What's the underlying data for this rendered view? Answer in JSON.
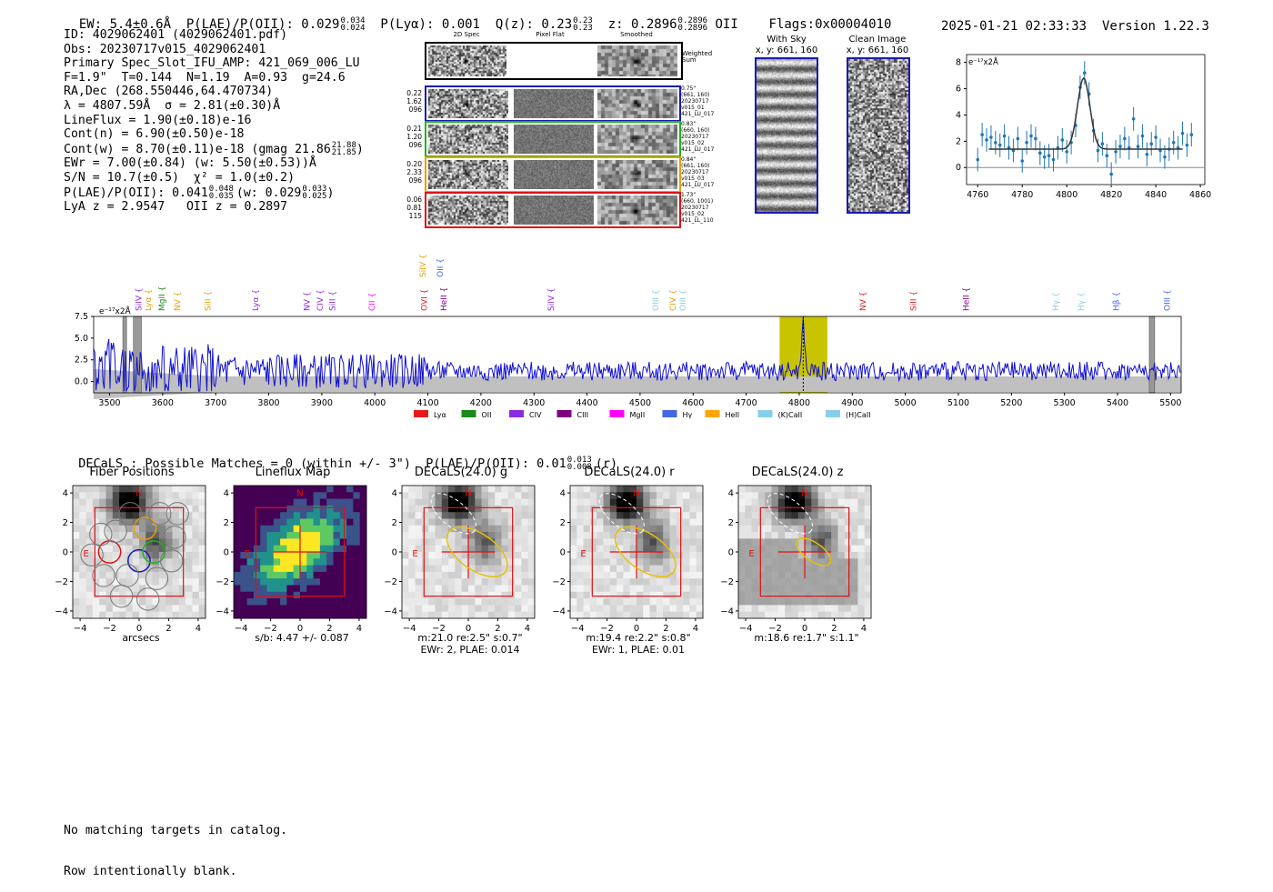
{
  "header": {
    "ew": "EW: 5.4±0.6Å",
    "plae": "P(LAE)/P(OII): 0.029",
    "plae_hi": "0.034",
    "plae_lo": "0.024",
    "plya": "P(Lyα): 0.001",
    "qz": "Q(z): 0.23",
    "qz_hi": "0.23",
    "qz_lo": "0.23",
    "z": "z: 0.2896",
    "z_hi": "0.2896",
    "z_lo": "0.2896",
    "z_line": "OII",
    "flags": "Flags:0x00004010",
    "timestamp": "2025-01-21 02:33:33",
    "version": "Version 1.22.3"
  },
  "info": {
    "id": "ID: 4029062401 (4029062401.pdf)",
    "obs": "Obs: 20230717v015_4029062401",
    "primary": "Primary Spec_Slot_IFU_AMP: 421_069_006_LU",
    "params": "F=1.9\"  T=0.144  N=1.19  A=0.93  g=24.6",
    "radec": "RA,Dec (268.550446,64.470734)",
    "lambda": "λ = 4807.59Å  σ = 2.81(±0.30)Å",
    "lineflux": "LineFlux = 1.90(±0.18)e-16",
    "contn": "Cont(n) = 6.90(±0.50)e-18",
    "contw": "Cont(w) = 8.70(±0.11)e-18 (gmag 21.86",
    "contw_hi": "21.88",
    "contw_lo": "21.85",
    "contw_end": ")",
    "ewr": "EWr = 7.00(±0.84) (w: 5.50(±0.53))Å",
    "sn": "S/N = 10.7(±0.5)  χ² = 1.0(±0.2)",
    "plae2": "P(LAE)/P(OII): 0.041",
    "plae2_hi": "0.048",
    "plae2_lo": "0.035",
    "plae2_w": "(w: 0.029",
    "plae2_w_hi": "0.033",
    "plae2_w_lo": "0.025",
    "plae2_end": ")",
    "lyaz": "LyA z = 2.9547   OII z = 0.2897"
  },
  "cutouts": {
    "col_headers": [
      "2D Spec",
      "Pixel Flat",
      "Smoothed"
    ],
    "weighted_sum": "Weighted\nSum",
    "rows": [
      {
        "left": [
          "0.22",
          "1.62",
          "096"
        ],
        "right": [
          "0.75\"",
          "(661, 160)",
          "20230717",
          "v015_01",
          "421_LU_017"
        ],
        "color": "#1a1ab3"
      },
      {
        "left": [
          "0.21",
          "1.20",
          "096"
        ],
        "right": [
          "0.83\"",
          "(660, 160)",
          "20230717",
          "v015_02",
          "421_LU_017"
        ],
        "color": "#1db31d"
      },
      {
        "left": [
          "0.20",
          "2.33",
          "096"
        ],
        "right": [
          "0.84\"",
          "(661, 160)",
          "20230717",
          "v015_03",
          "421_LU_017"
        ],
        "color": "#e8a000"
      },
      {
        "left": [
          "0.06",
          "0.81",
          "115"
        ],
        "right": [
          "1.73\"",
          "(660, 1001)",
          "20230717",
          "v015_02",
          "421_LL_110"
        ],
        "color": "#e01010"
      }
    ]
  },
  "sky": {
    "with_sky_title": "With Sky",
    "with_sky_coords": "x, y: 661, 160",
    "clean_title": "Clean Image",
    "clean_coords": "x, y: 661, 160"
  },
  "zoom_chart": {
    "ylabel": "e⁻¹⁷x2Å",
    "color": "#1f77b4"
  },
  "main_spectrum": {
    "ylabel": "e⁻¹⁷x2Å",
    "line_color": "#1010d0",
    "band_color": "#c8c400",
    "legend": [
      {
        "name": "Lyα",
        "color": "#e41a1c"
      },
      {
        "name": "OII",
        "color": "#1a8a1a"
      },
      {
        "name": "CIV",
        "color": "#8a2be2"
      },
      {
        "name": "CIII",
        "color": "#800080"
      },
      {
        "name": "MgII",
        "color": "#ff00ff"
      },
      {
        "name": "Hγ",
        "color": "#4169e1"
      },
      {
        "name": "HeII",
        "color": "#ffa500"
      },
      {
        "name": "(K)CaII",
        "color": "#87ceeb"
      },
      {
        "name": "(H)CaII",
        "color": "#87ceeb"
      }
    ]
  },
  "decals": {
    "summary": "DECaLS : Possible Matches = 0 (within +/- 3\")  P(LAE)/P(OII): 0.01",
    "summary_hi": "0.013",
    "summary_lo": "0.008",
    "summary_end": "(r)",
    "panels": [
      {
        "title": "Fiber Positions",
        "caption1": "arcsecs",
        "caption2": ""
      },
      {
        "title": "Lineflux Map",
        "caption1": "s/b: 4.47 +/- 0.087",
        "caption2": ""
      },
      {
        "title": "DECaLS(24.0) g",
        "caption1": "m:21.0  re:2.5\"  s:0.7\"",
        "caption2": "EWr: 2, PLAE: 0.014"
      },
      {
        "title": "DECaLS(24.0) r",
        "caption1": "m:19.4  re:2.2\"  s:0.8\"",
        "caption2": "EWr: 1, PLAE: 0.01"
      },
      {
        "title": "DECaLS(24.0) z",
        "caption1": "m:18.6  re:1.7\"  s:1.1\"",
        "caption2": ""
      }
    ],
    "tick_labels": [
      "−4",
      "−2",
      "0",
      "2",
      "4"
    ],
    "north": "N",
    "east": "E"
  },
  "footer": {
    "line1": "No matching targets in catalog.",
    "line2": "Row intentionally blank."
  },
  "chart_data": [
    {
      "type": "scatter",
      "name_hint": "line zoom",
      "ylabel": "e⁻¹⁷x2Å",
      "xlim": [
        4755,
        4862
      ],
      "ylim": [
        -1.3,
        8.6
      ],
      "xticks": [
        4760,
        4780,
        4800,
        4820,
        4840,
        4860
      ],
      "yticks": [
        0,
        2,
        4,
        6,
        8
      ],
      "x": [
        4760,
        4762,
        4764,
        4766,
        4768,
        4770,
        4772,
        4774,
        4776,
        4778,
        4780,
        4782,
        4784,
        4786,
        4788,
        4790,
        4792,
        4794,
        4796,
        4798,
        4800,
        4802,
        4804,
        4806,
        4808,
        4810,
        4812,
        4814,
        4816,
        4818,
        4820,
        4822,
        4824,
        4826,
        4828,
        4830,
        4832,
        4834,
        4836,
        4838,
        4840,
        4842,
        4844,
        4846,
        4848,
        4850,
        4852,
        4854,
        4856
      ],
      "y": [
        0.6,
        2.5,
        2.1,
        2.3,
        1.9,
        1.7,
        2.4,
        1.5,
        1.3,
        2.2,
        0.5,
        1.9,
        2.4,
        2.2,
        1.1,
        0.8,
        0.9,
        0.6,
        1.5,
        2.1,
        1.2,
        1.9,
        3.2,
        6.1,
        7.2,
        5.6,
        2.8,
        1.3,
        1.8,
        0.9,
        -0.5,
        1.2,
        1.6,
        2.2,
        1.5,
        3.7,
        1.6,
        2.4,
        1.0,
        1.8,
        2.3,
        1.3,
        0.8,
        1.4,
        1.9,
        1.5,
        2.6,
        1.7,
        2.5
      ],
      "err": [
        0.9,
        0.9,
        0.9,
        0.9,
        0.9,
        0.9,
        0.9,
        0.9,
        0.9,
        0.9,
        0.9,
        0.9,
        0.9,
        0.9,
        0.9,
        0.9,
        0.9,
        0.9,
        0.9,
        0.9,
        0.9,
        0.9,
        0.9,
        0.9,
        0.9,
        0.9,
        0.9,
        0.9,
        0.9,
        0.9,
        0.9,
        0.9,
        0.9,
        0.9,
        0.9,
        0.9,
        0.9,
        0.9,
        0.9,
        0.9,
        0.9,
        0.9,
        0.9,
        0.9,
        0.9,
        0.9,
        0.9,
        0.9,
        0.9
      ],
      "fit": {
        "continuum": 1.4,
        "center": 4807.6,
        "sigma": 2.8,
        "amplitude": 5.4
      }
    },
    {
      "type": "line",
      "name_hint": "full spectrum",
      "ylabel": "e⁻¹⁷x2Å",
      "xlim": [
        3470,
        5520
      ],
      "ylim": [
        -1.3,
        7.5
      ],
      "xticks": [
        3500,
        3600,
        3700,
        3800,
        3900,
        4000,
        4100,
        4200,
        4300,
        4400,
        4500,
        4600,
        4700,
        4800,
        4900,
        5000,
        5100,
        5200,
        5300,
        5400,
        5500
      ],
      "yticks": [
        0.0,
        2.5,
        5.0,
        7.5
      ],
      "highlight_band": [
        4763,
        4853
      ],
      "marked_wavelength": 4807.6,
      "masked_regions": [
        [
          3525,
          3532
        ],
        [
          3545,
          3560
        ],
        [
          5460,
          5470
        ]
      ],
      "line_labels": [
        {
          "name": "SiIV",
          "x": 3560,
          "color": "#8a2be2"
        },
        {
          "name": "Lyα",
          "x": 3578,
          "color": "#e8a000"
        },
        {
          "name": "MgII",
          "x": 3604,
          "color": "#1a8a1a"
        },
        {
          "name": "NV",
          "x": 3633,
          "color": "#e8a000"
        },
        {
          "name": "SiII",
          "x": 3690,
          "color": "#e8a000"
        },
        {
          "name": "Lyα",
          "x": 3780,
          "color": "#8a2be2"
        },
        {
          "name": "NV",
          "x": 3877,
          "color": "#8a2be2"
        },
        {
          "name": "CIV",
          "x": 3902,
          "color": "#8a2be2"
        },
        {
          "name": "SiII",
          "x": 3925,
          "color": "#8a2be2"
        },
        {
          "name": "CII",
          "x": 4000,
          "color": "#ff00ff"
        },
        {
          "name": "SiIV",
          "x": 4096,
          "color": "#e8a000"
        },
        {
          "name": "OII",
          "x": 4128,
          "color": "#4169e1"
        },
        {
          "name": "OVI",
          "x": 4098,
          "color": "#e41a1c"
        },
        {
          "name": "HeII",
          "x": 4135,
          "color": "#800080"
        },
        {
          "name": "SiIV",
          "x": 4337,
          "color": "#8a2be2"
        },
        {
          "name": "OIII",
          "x": 4534,
          "color": "#87ceeb"
        },
        {
          "name": "CIV",
          "x": 4567,
          "color": "#e8a000"
        },
        {
          "name": "OIII",
          "x": 4586,
          "color": "#87ceeb"
        },
        {
          "name": "NV",
          "x": 4925,
          "color": "#e41a1c"
        },
        {
          "name": "SiII",
          "x": 5020,
          "color": "#e41a1c"
        },
        {
          "name": "HeII",
          "x": 5120,
          "color": "#800080"
        },
        {
          "name": "Hγ",
          "x": 5289,
          "color": "#87ceeb"
        },
        {
          "name": "Hγ",
          "x": 5337,
          "color": "#87ceeb"
        },
        {
          "name": "Hβ",
          "x": 5403,
          "color": "#4169e1"
        },
        {
          "name": "OIII",
          "x": 5499,
          "color": "#4169e1"
        }
      ]
    }
  ]
}
